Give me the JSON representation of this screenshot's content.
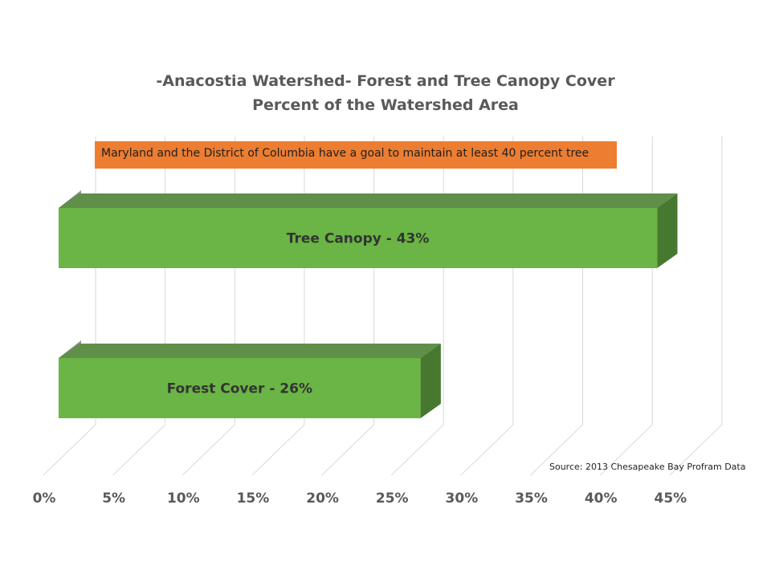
{
  "title": {
    "line1": "-Anacostia Watershed- Forest and Tree Canopy Cover",
    "line2": "Percent of the Watershed Area"
  },
  "annotation": "Maryland and the District of Columbia have a goal to maintain at least 40 percent tree",
  "source": "Source: 2013 Chesapeake Bay Profram Data",
  "colors": {
    "bar_front": "#6ab545",
    "bar_top": "#5f8f48",
    "bar_side": "#46782f",
    "banner": "#ed7d31",
    "grid": "#d9d9d9",
    "text": "#595959"
  },
  "chart_data": {
    "type": "bar",
    "orientation": "horizontal",
    "style": "3d",
    "categories": [
      "Tree Canopy",
      "Forest Cover"
    ],
    "values": [
      43,
      26
    ],
    "data_labels": [
      "Tree Canopy - 43%",
      "Forest Cover - 26%"
    ],
    "xlim": [
      0,
      45
    ],
    "x_ticks": [
      "0%",
      "5%",
      "10%",
      "15%",
      "20%",
      "25%",
      "30%",
      "35%",
      "40%",
      "45%"
    ],
    "x_tick_values": [
      0,
      5,
      10,
      15,
      20,
      25,
      30,
      35,
      40,
      45
    ],
    "grid": true,
    "legend": "none"
  }
}
